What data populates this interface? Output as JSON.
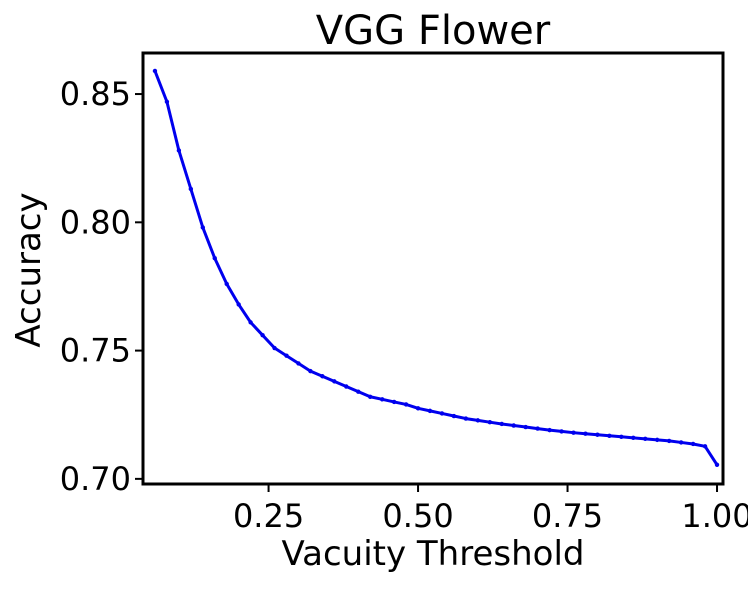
{
  "chart_data": {
    "type": "line",
    "title": "VGG Flower",
    "xlabel": "Vacuity Threshold",
    "ylabel": "Accuracy",
    "xlim": [
      0.04,
      1.01
    ],
    "ylim": [
      0.698,
      0.866
    ],
    "xticks": [
      0.25,
      0.5,
      0.75,
      1.0
    ],
    "xtick_labels": [
      "0.25",
      "0.50",
      "0.75",
      "1.00"
    ],
    "yticks": [
      0.7,
      0.75,
      0.8,
      0.85
    ],
    "ytick_labels": [
      "0.70",
      "0.75",
      "0.80",
      "0.85"
    ],
    "grid": false,
    "legend": "none",
    "series": [
      {
        "color": "#0000ee",
        "x": [
          0.06,
          0.08,
          0.1,
          0.12,
          0.14,
          0.16,
          0.18,
          0.2,
          0.22,
          0.24,
          0.26,
          0.28,
          0.3,
          0.32,
          0.34,
          0.36,
          0.38,
          0.4,
          0.42,
          0.44,
          0.46,
          0.48,
          0.5,
          0.52,
          0.54,
          0.56,
          0.58,
          0.6,
          0.62,
          0.64,
          0.66,
          0.68,
          0.7,
          0.72,
          0.74,
          0.76,
          0.78,
          0.8,
          0.82,
          0.84,
          0.86,
          0.88,
          0.9,
          0.92,
          0.94,
          0.96,
          0.98,
          1.0
        ],
        "y": [
          0.859,
          0.847,
          0.828,
          0.813,
          0.798,
          0.786,
          0.776,
          0.768,
          0.761,
          0.756,
          0.751,
          0.748,
          0.745,
          0.742,
          0.74,
          0.738,
          0.736,
          0.734,
          0.732,
          0.731,
          0.73,
          0.729,
          0.7275,
          0.7265,
          0.7255,
          0.7245,
          0.7235,
          0.7228,
          0.7221,
          0.7214,
          0.7208,
          0.7202,
          0.7196,
          0.719,
          0.7185,
          0.718,
          0.7176,
          0.7172,
          0.7168,
          0.7164,
          0.716,
          0.7156,
          0.7152,
          0.7148,
          0.7142,
          0.7136,
          0.7127,
          0.7055
        ]
      }
    ]
  }
}
